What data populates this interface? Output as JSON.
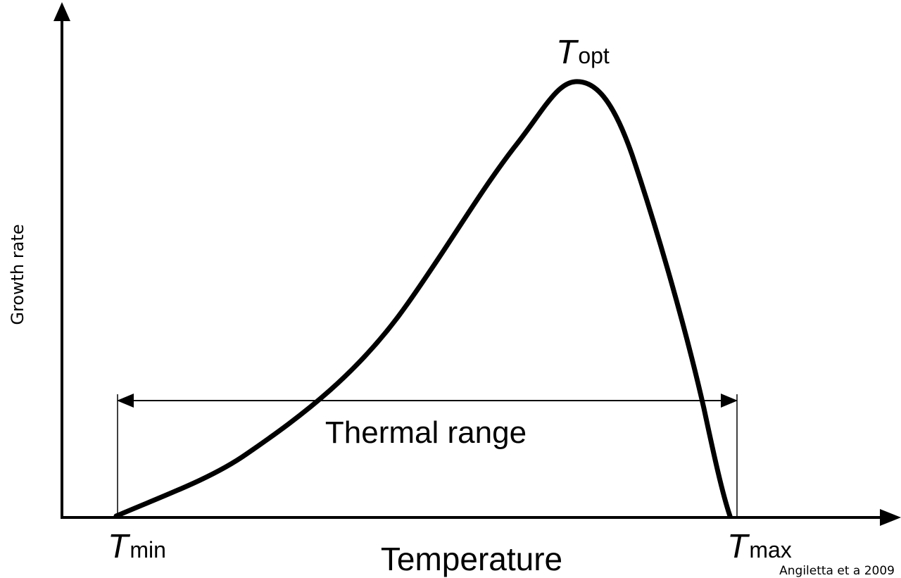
{
  "diagram": {
    "y_axis_label": "Growth rate",
    "x_axis_label": "Temperature",
    "range_label": "Thermal range",
    "peak_label": {
      "main": "T",
      "sub": "opt"
    },
    "min_label": {
      "main": "T",
      "sub": "min"
    },
    "max_label": {
      "main": "T",
      "sub": "max"
    },
    "citation": "Angiletta et a 2009"
  },
  "colors": {
    "ink": "#000000",
    "background": "#ffffff"
  }
}
